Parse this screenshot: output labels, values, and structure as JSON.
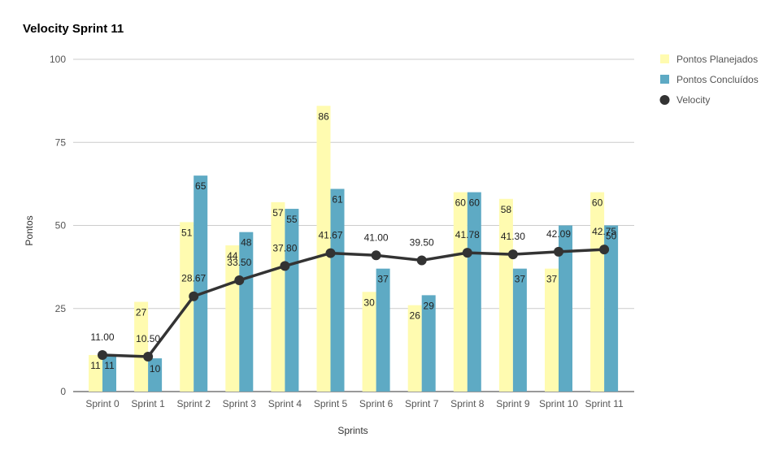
{
  "chart_data": {
    "type": "bar",
    "title": "Velocity Sprint 11",
    "xlabel": "Sprints",
    "ylabel": "Pontos",
    "ylim": [
      0,
      100
    ],
    "yticks": [
      "0",
      "25",
      "50",
      "75",
      "100"
    ],
    "categories": [
      "Sprint 0",
      "Sprint 1",
      "Sprint 2",
      "Sprint 3",
      "Sprint 4",
      "Sprint 5",
      "Sprint 6",
      "Sprint 7",
      "Sprint 8",
      "Sprint 9",
      "Sprint 10",
      "Sprint 11"
    ],
    "series": [
      {
        "name": "Pontos Planejados",
        "kind": "bar",
        "color": "#fffbb0",
        "values": [
          11,
          27,
          51,
          44,
          57,
          86,
          30,
          26,
          60,
          58,
          37,
          60
        ],
        "labels": [
          "11",
          "27",
          "51",
          "44",
          "57",
          "86",
          "30",
          "26",
          "60",
          "58",
          "37",
          "60"
        ]
      },
      {
        "name": "Pontos Concluídos",
        "kind": "bar",
        "color": "#5eaac4",
        "values": [
          11,
          10,
          65,
          48,
          55,
          61,
          37,
          29,
          60,
          37,
          50,
          50
        ],
        "labels": [
          "11",
          "10",
          "65",
          "48",
          "55",
          "61",
          "37",
          "29",
          "60",
          "37",
          "",
          "50"
        ]
      },
      {
        "name": "Velocity",
        "kind": "line",
        "color": "#333333",
        "values": [
          11.0,
          10.5,
          28.67,
          33.5,
          37.8,
          41.67,
          41.0,
          39.5,
          41.78,
          41.3,
          42.09,
          42.75
        ],
        "labels": [
          "11.00",
          "10.50",
          "28.67",
          "33.50",
          "37.80",
          "41.67",
          "41.00",
          "39.50",
          "41.78",
          "41.30",
          "42.09",
          "42.75"
        ]
      }
    ],
    "legend": "right",
    "grid": true
  }
}
